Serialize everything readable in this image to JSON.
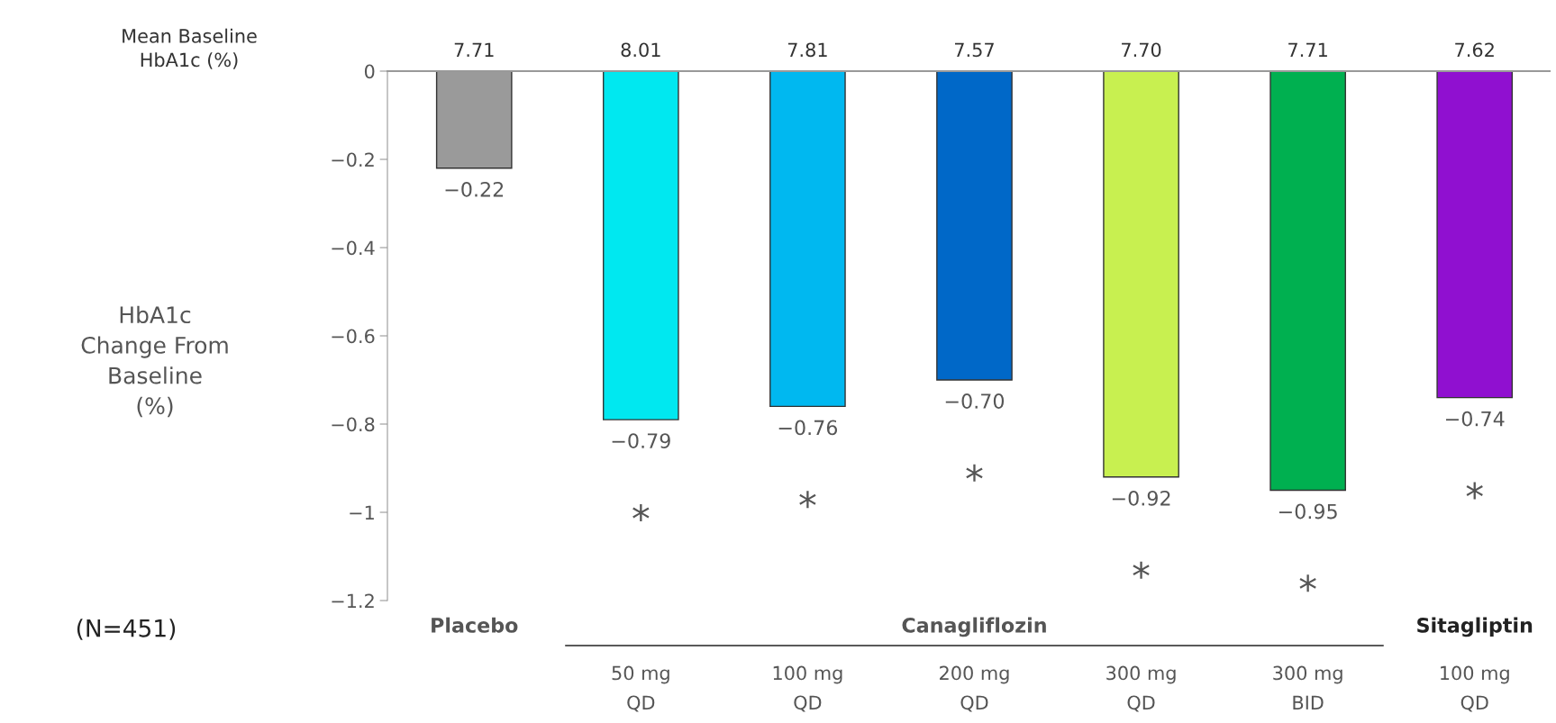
{
  "chart_data": {
    "type": "bar",
    "ylabel": "HbA1c\nChange From\nBaseline\n(%)",
    "categories": [
      null,
      "50 mg\nQD",
      "100 mg\nQD",
      "200 mg\nQD",
      "300 mg\nQD",
      "300 mg\nBID",
      "100 mg\nQD"
    ],
    "values": [
      -0.22,
      -0.79,
      -0.76,
      -0.7,
      -0.92,
      -0.95,
      -0.74
    ],
    "colors": [
      "#9a9a9a",
      "#00e8f0",
      "#00b8f0",
      "#0068c8",
      "#c8f050",
      "#00b050",
      "#9010d0"
    ],
    "value_labels": [
      "−0.22",
      "−0.79",
      "−0.76",
      "−0.70",
      "−0.92",
      "−0.95",
      "−0.74"
    ],
    "ylim": [
      -1.2,
      0
    ],
    "yticks": [
      -1.2,
      -1,
      -0.8,
      -0.6,
      -0.4,
      -0.2,
      0
    ],
    "grid": false,
    "annotations": [
      "Mean Baseline\nHbA1c (%)",
      "7.71",
      "8.01",
      "7.81",
      "7.57",
      "7.70",
      "7.71",
      "7.62",
      "Placebo",
      "Canagliflozin",
      "Sitagliptin",
      "*",
      "*",
      "*",
      "*",
      "*",
      "*",
      "(N=451)"
    ]
  }
}
